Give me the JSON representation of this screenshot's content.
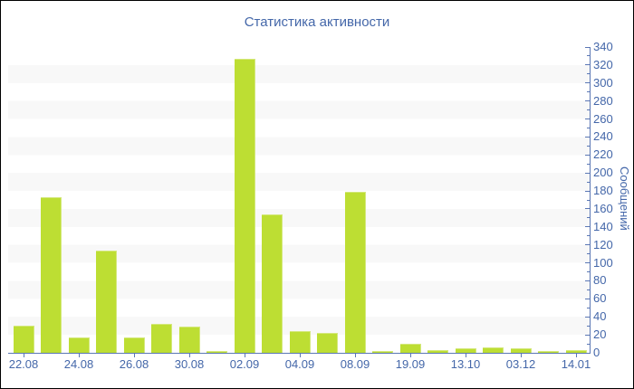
{
  "chart_data": {
    "type": "bar",
    "title": "Статистика активности",
    "ylabel": "Сообщений",
    "xlabel": "",
    "legend_position": "none",
    "grid": "horizontal-bands-every-20",
    "values": [
      30,
      173,
      17,
      114,
      17,
      32,
      29,
      2,
      327,
      154,
      24,
      22,
      179,
      2,
      10,
      3,
      5,
      6,
      5,
      2,
      3
    ],
    "x_tick_labels": [
      "22.08",
      "24.08",
      "26.08",
      "30.08",
      "02.09",
      "04.09",
      "08.09",
      "19.09",
      "13.10",
      "03.12",
      "14.01"
    ],
    "x_label_every": 2,
    "y_axis": {
      "min": 0,
      "max": 340,
      "major_step": 20,
      "minor_step": 10
    },
    "ylim": [
      0,
      340
    ],
    "colors": {
      "bar": "#bdde33",
      "bar_edge": "#d4e87d",
      "text": "#4467a9",
      "axis": "#5b77b4",
      "band": "#f8f8f8",
      "background": "#ffffff",
      "frame_border": "#000000"
    }
  }
}
